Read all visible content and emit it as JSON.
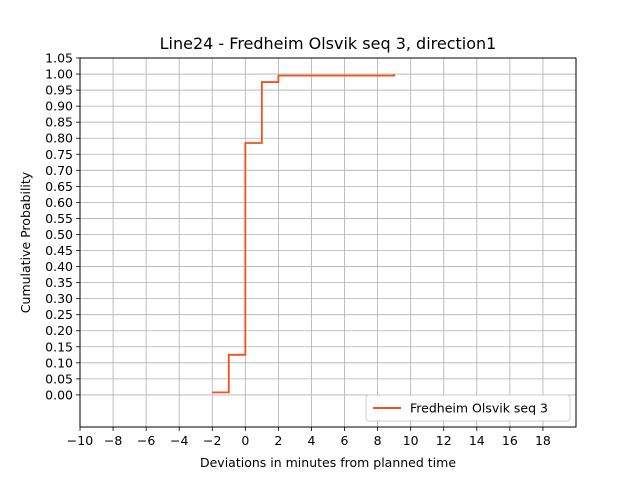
{
  "chart_data": {
    "type": "line",
    "title": "Line24 - Fredheim Olsvik seq 3, direction1",
    "xlabel": "Deviations in minutes from planned time",
    "ylabel": "Cumulative Probability",
    "xlim": [
      -10,
      20
    ],
    "ylim": [
      -0.1,
      1.05
    ],
    "xticks": [
      -10,
      -8,
      -6,
      -4,
      -2,
      0,
      2,
      4,
      6,
      8,
      10,
      12,
      14,
      16,
      18
    ],
    "xtick_labels": [
      "−10",
      "−8",
      "−6",
      "−4",
      "−2",
      "0",
      "2",
      "4",
      "6",
      "8",
      "10",
      "12",
      "14",
      "16",
      "18"
    ],
    "yticks": [
      0.0,
      0.05,
      0.1,
      0.15,
      0.2,
      0.25,
      0.3,
      0.35,
      0.4,
      0.45,
      0.5,
      0.55,
      0.6,
      0.65,
      0.7,
      0.75,
      0.8,
      0.85,
      0.9,
      0.95,
      1.0,
      1.05
    ],
    "ytick_labels": [
      "0.00",
      "0.05",
      "0.10",
      "0.15",
      "0.20",
      "0.25",
      "0.30",
      "0.35",
      "0.40",
      "0.45",
      "0.50",
      "0.55",
      "0.60",
      "0.65",
      "0.70",
      "0.75",
      "0.80",
      "0.85",
      "0.90",
      "0.95",
      "1.00",
      "1.05"
    ],
    "grid": true,
    "legend_position": "lower-right",
    "series": [
      {
        "name": "Fredheim Olsvik seq 3",
        "color": "#f4511e",
        "step": "post",
        "x": [
          -2,
          -1,
          0,
          1,
          2,
          9
        ],
        "y": [
          0.008,
          0.125,
          0.785,
          0.975,
          0.995,
          1.0
        ]
      }
    ]
  }
}
